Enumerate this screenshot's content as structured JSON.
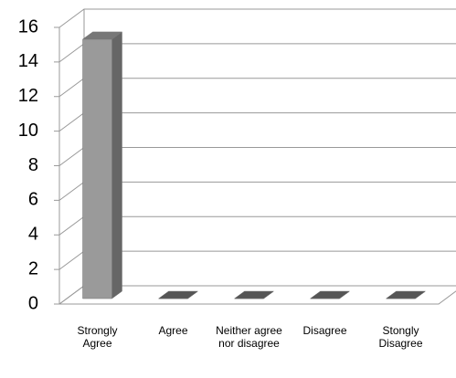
{
  "chart_data": {
    "type": "bar3d",
    "categories": [
      "Strongly Agree",
      "Agree",
      "Neither agree nor disagree",
      "Disagree",
      "Stongly Disagree"
    ],
    "values": [
      15,
      0,
      0,
      0,
      0
    ],
    "color": "#9a9a9a",
    "ylim": [
      0,
      16
    ],
    "yticks": [
      0,
      2,
      4,
      6,
      8,
      10,
      12,
      14,
      16
    ],
    "grid": true
  }
}
